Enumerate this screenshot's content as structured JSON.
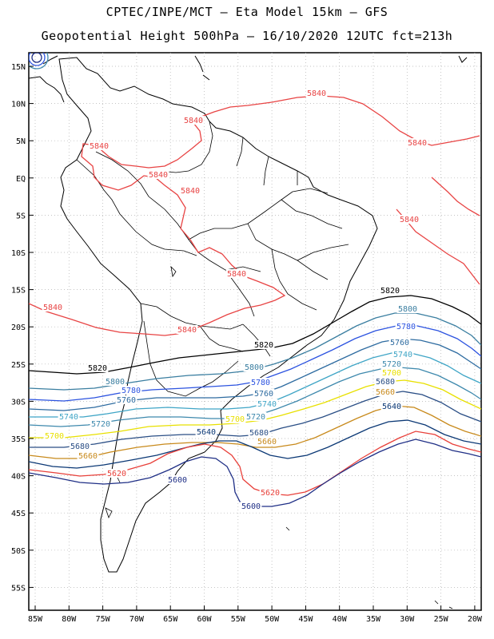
{
  "header": {
    "line1": "CPTEC/INPE/MCT –  Eta Model 15km – GFS",
    "line2": "Geopotential Height 500hPa – 16/10/2020 12UTC fct=213h"
  },
  "axes": {
    "lat_labels": [
      "15N",
      "10N",
      "5N",
      "EQ",
      "5S",
      "10S",
      "15S",
      "20S",
      "25S",
      "30S",
      "35S",
      "40S",
      "45S",
      "50S",
      "55S"
    ],
    "lon_labels": [
      "85W",
      "80W",
      "75W",
      "70W",
      "65W",
      "60W",
      "55W",
      "50W",
      "45W",
      "40W",
      "35W",
      "30W",
      "25W",
      "20W"
    ]
  },
  "colors": {
    "c5600": "#1f2f86",
    "c5620": "#e8403a",
    "c5640": "#0b3875",
    "c5660": "#c88a1c",
    "c5680": "#2a4e85",
    "c5700": "#e8e000",
    "c5720": "#3e89ad",
    "c5740": "#3fa5c6",
    "c5760": "#2d6ba0",
    "c5780": "#2c53e0",
    "c5800": "#3a7ea0",
    "c5820": "#000000",
    "c5840": "#e84444",
    "grid": "#b0b0b0",
    "coast": "#000000"
  },
  "contour_labels": [
    {
      "text": "5840",
      "color": "c5840"
    },
    {
      "text": "5840",
      "color": "c5840"
    },
    {
      "text": "5840",
      "color": "c5840"
    },
    {
      "text": "5840",
      "color": "c5840"
    },
    {
      "text": "5840",
      "color": "c5840"
    },
    {
      "text": "5840",
      "color": "c5840"
    },
    {
      "text": "5840",
      "color": "c5840"
    },
    {
      "text": "5840",
      "color": "c5840"
    },
    {
      "text": "5840",
      "color": "c5840"
    },
    {
      "text": "5840",
      "color": "c5840"
    },
    {
      "text": "5820",
      "color": "c5820"
    },
    {
      "text": "5820",
      "color": "c5820"
    },
    {
      "text": "5820",
      "color": "c5820"
    },
    {
      "text": "5800",
      "color": "c5800"
    },
    {
      "text": "5800",
      "color": "c5800"
    },
    {
      "text": "5800",
      "color": "c5800"
    },
    {
      "text": "5780",
      "color": "c5780"
    },
    {
      "text": "5780",
      "color": "c5780"
    },
    {
      "text": "5780",
      "color": "c5780"
    },
    {
      "text": "5760",
      "color": "c5760"
    },
    {
      "text": "5760",
      "color": "c5760"
    },
    {
      "text": "5760",
      "color": "c5760"
    },
    {
      "text": "5740",
      "color": "c5740"
    },
    {
      "text": "5740",
      "color": "c5740"
    },
    {
      "text": "5740",
      "color": "c5740"
    },
    {
      "text": "5720",
      "color": "c5720"
    },
    {
      "text": "5720",
      "color": "c5720"
    },
    {
      "text": "5720",
      "color": "c5720"
    },
    {
      "text": "5700",
      "color": "c5700"
    },
    {
      "text": "5700",
      "color": "c5700"
    },
    {
      "text": "5700",
      "color": "c5700"
    },
    {
      "text": "5680",
      "color": "c5680"
    },
    {
      "text": "5680",
      "color": "c5680"
    },
    {
      "text": "5680",
      "color": "c5680"
    },
    {
      "text": "5660",
      "color": "c5660"
    },
    {
      "text": "5660",
      "color": "c5660"
    },
    {
      "text": "5660",
      "color": "c5660"
    },
    {
      "text": "5640",
      "color": "c5640"
    },
    {
      "text": "5640",
      "color": "c5640"
    },
    {
      "text": "5620",
      "color": "c5620"
    },
    {
      "text": "5620",
      "color": "c5620"
    },
    {
      "text": "5600",
      "color": "c5600"
    },
    {
      "text": "5600",
      "color": "c5600"
    }
  ]
}
